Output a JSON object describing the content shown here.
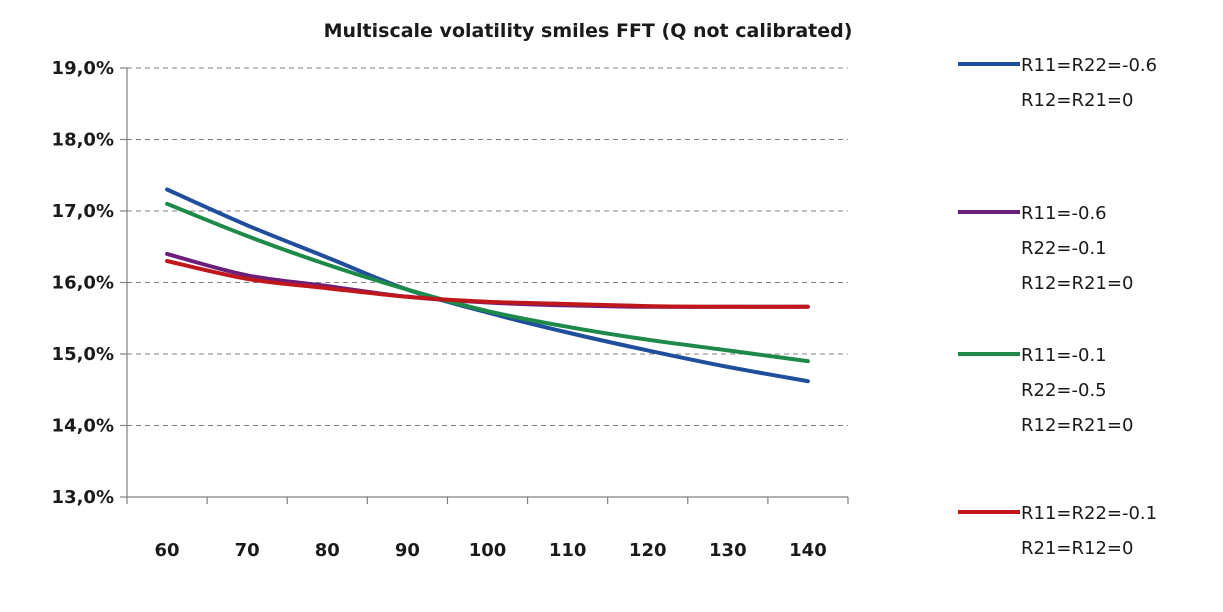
{
  "chart_data": {
    "type": "line",
    "title": "Multiscale volatility smiles FFT (Q not calibrated)",
    "x": [
      60,
      70,
      80,
      90,
      100,
      110,
      120,
      130,
      140
    ],
    "x_tick_labels": [
      "60",
      "70",
      "80",
      "90",
      "100",
      "110",
      "120",
      "130",
      "140"
    ],
    "y_tick_labels": [
      "13,0%",
      "14,0%",
      "15,0%",
      "16,0%",
      "17,0%",
      "18,0%",
      "19,0%"
    ],
    "ylim": [
      13.0,
      19.0
    ],
    "y_ticks": [
      13.0,
      14.0,
      15.0,
      16.0,
      17.0,
      18.0,
      19.0
    ],
    "grid": true,
    "legend_position": "right",
    "series": [
      {
        "name_lines": [
          "R11=R22=-0.6",
          "R12=R21=0"
        ],
        "color": "#1f4e9c",
        "values": [
          17.3,
          16.8,
          16.35,
          15.9,
          15.58,
          15.3,
          15.05,
          14.82,
          14.62
        ]
      },
      {
        "name_lines": [
          "R11=-0.6",
          "R22=-0.1",
          "R12=R21=0"
        ],
        "color": "#6b1f7a",
        "values": [
          16.4,
          16.1,
          15.95,
          15.8,
          15.72,
          15.68,
          15.66,
          15.66,
          15.66
        ]
      },
      {
        "name_lines": [
          "R11=-0.1",
          "R22=-0.5",
          "R12=R21=0"
        ],
        "color": "#1e8a4a",
        "values": [
          17.1,
          16.65,
          16.25,
          15.9,
          15.6,
          15.38,
          15.2,
          15.05,
          14.9
        ]
      },
      {
        "name_lines": [
          "R11=R22=-0.1",
          "R21=R12=0"
        ],
        "color": "#c0171c",
        "values": [
          16.3,
          16.05,
          15.92,
          15.8,
          15.73,
          15.7,
          15.67,
          15.66,
          15.66
        ]
      }
    ]
  }
}
